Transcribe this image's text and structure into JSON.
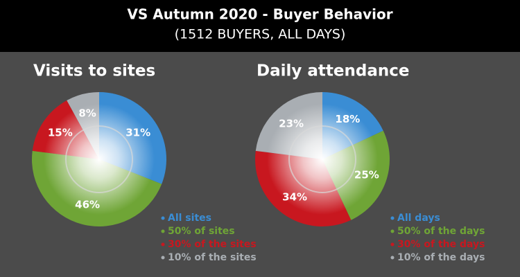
{
  "header": {
    "title": "VS Autumn 2020 - Buyer Behavior",
    "subtitle": "(1512 BUYERS, ALL DAYS)"
  },
  "chart_data": [
    {
      "type": "pie",
      "title": "Visits to sites",
      "categories": [
        "All sites",
        "50% of sites",
        "30% of the sites",
        "10% of the sites"
      ],
      "values": [
        31,
        46,
        15,
        8
      ],
      "value_labels": [
        "31%",
        "46%",
        "15%",
        "8%"
      ],
      "colors": [
        "#3a8dd4",
        "#6fa536",
        "#c8171f",
        "#a9aeb3"
      ]
    },
    {
      "type": "pie",
      "title": "Daily attendance",
      "categories": [
        "All days",
        "50% of the days",
        "30% of the days",
        "10% of the days"
      ],
      "values": [
        18,
        25,
        34,
        23
      ],
      "value_labels": [
        "18%",
        "25%",
        "34%",
        "23%"
      ],
      "colors": [
        "#3a8dd4",
        "#6fa536",
        "#c8171f",
        "#a9aeb3"
      ]
    }
  ]
}
